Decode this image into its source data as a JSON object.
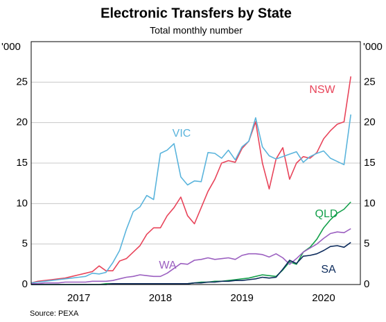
{
  "chart_data": {
    "type": "line",
    "title": "Electronic Transfers by State",
    "subtitle": "Total monthly number",
    "y_unit": "'000",
    "source": "Source:   PEXA",
    "xlim": [
      2016.917,
      2020.95
    ],
    "xticks": [
      {
        "value": 2017.5,
        "label": "2017"
      },
      {
        "value": 2018.5,
        "label": "2018"
      },
      {
        "value": 2019.5,
        "label": "2019"
      },
      {
        "value": 2020.5,
        "label": "2020"
      }
    ],
    "ylim": [
      0,
      30
    ],
    "yticks": [
      0,
      5,
      10,
      15,
      20,
      25
    ],
    "grid": true,
    "x": [
      2016.917,
      2017.0,
      2017.083,
      2017.167,
      2017.25,
      2017.333,
      2017.417,
      2017.5,
      2017.583,
      2017.667,
      2017.75,
      2017.833,
      2017.917,
      2018.0,
      2018.083,
      2018.167,
      2018.25,
      2018.333,
      2018.417,
      2018.5,
      2018.583,
      2018.667,
      2018.75,
      2018.833,
      2018.917,
      2019.0,
      2019.083,
      2019.167,
      2019.25,
      2019.333,
      2019.417,
      2019.5,
      2019.583,
      2019.667,
      2019.75,
      2019.833,
      2019.917,
      2020.0,
      2020.083,
      2020.167,
      2020.25,
      2020.333,
      2020.417,
      2020.5,
      2020.583,
      2020.667,
      2020.75,
      2020.833
    ],
    "series": [
      {
        "name": "NSW",
        "color": "#e8445a",
        "values": [
          0.2,
          0.4,
          0.5,
          0.6,
          0.7,
          0.8,
          1.0,
          1.2,
          1.4,
          1.6,
          2.3,
          1.7,
          1.7,
          2.9,
          3.2,
          4.0,
          4.8,
          6.2,
          7.0,
          7.0,
          8.5,
          9.5,
          10.8,
          8.5,
          7.5,
          9.5,
          11.5,
          13.0,
          15.0,
          15.3,
          15.1,
          16.8,
          17.7,
          20.1,
          15.0,
          11.8,
          15.5,
          16.9,
          13.0,
          15.0,
          15.8,
          15.6,
          16.3,
          18.0,
          19.0,
          19.8,
          20.1,
          25.7
        ]
      },
      {
        "name": "VIC",
        "color": "#5ab4dc",
        "values": [
          0.2,
          0.3,
          0.4,
          0.5,
          0.6,
          0.7,
          0.8,
          0.9,
          1.0,
          1.4,
          1.3,
          1.5,
          2.7,
          4.2,
          6.8,
          9.0,
          9.6,
          11.0,
          10.5,
          16.2,
          16.6,
          17.4,
          13.3,
          12.3,
          12.8,
          12.7,
          16.3,
          16.2,
          15.6,
          16.6,
          15.4,
          17.0,
          17.7,
          20.6,
          17.0,
          15.9,
          15.5,
          15.8,
          16.1,
          16.4,
          15.1,
          15.8,
          16.2,
          16.5,
          15.6,
          15.2,
          14.8,
          21.0
        ]
      },
      {
        "name": "QLD",
        "color": "#14a04b",
        "values": [
          0,
          0,
          0,
          0,
          0,
          0,
          0,
          0,
          0,
          0,
          0,
          0.1,
          0.1,
          0.1,
          0.1,
          0.1,
          0.1,
          0.1,
          0.1,
          0.1,
          0.1,
          0.1,
          0.1,
          0.1,
          0.2,
          0.3,
          0.3,
          0.4,
          0.4,
          0.5,
          0.6,
          0.7,
          0.8,
          1.0,
          1.2,
          1.1,
          1.0,
          1.8,
          2.8,
          2.5,
          4.0,
          4.6,
          5.6,
          7.0,
          8.0,
          8.8,
          9.3,
          10.2
        ]
      },
      {
        "name": "WA",
        "color": "#9b5fc0",
        "values": [
          0.1,
          0.1,
          0.2,
          0.2,
          0.2,
          0.3,
          0.3,
          0.3,
          0.3,
          0.4,
          0.4,
          0.4,
          0.5,
          0.7,
          0.9,
          1.0,
          1.2,
          1.1,
          1.0,
          1.0,
          1.4,
          2.0,
          2.6,
          2.5,
          3.0,
          3.1,
          3.3,
          3.1,
          3.2,
          3.3,
          3.1,
          3.6,
          3.8,
          3.8,
          3.7,
          3.4,
          3.8,
          3.3,
          2.5,
          3.2,
          4.0,
          4.5,
          5.0,
          5.7,
          6.3,
          6.5,
          6.4,
          6.9
        ]
      },
      {
        "name": "SA",
        "color": "#0b2a5b",
        "values": [
          0,
          0,
          0,
          0,
          0,
          0,
          0,
          0,
          0,
          0,
          0,
          0,
          0.1,
          0.1,
          0.1,
          0.1,
          0.1,
          0.1,
          0.1,
          0.1,
          0.1,
          0.1,
          0.1,
          0.1,
          0.2,
          0.2,
          0.3,
          0.3,
          0.4,
          0.4,
          0.5,
          0.5,
          0.6,
          0.7,
          0.9,
          0.8,
          0.9,
          1.9,
          3.0,
          2.6,
          3.5,
          3.6,
          3.8,
          4.2,
          4.7,
          4.8,
          4.6,
          5.2
        ]
      }
    ]
  }
}
